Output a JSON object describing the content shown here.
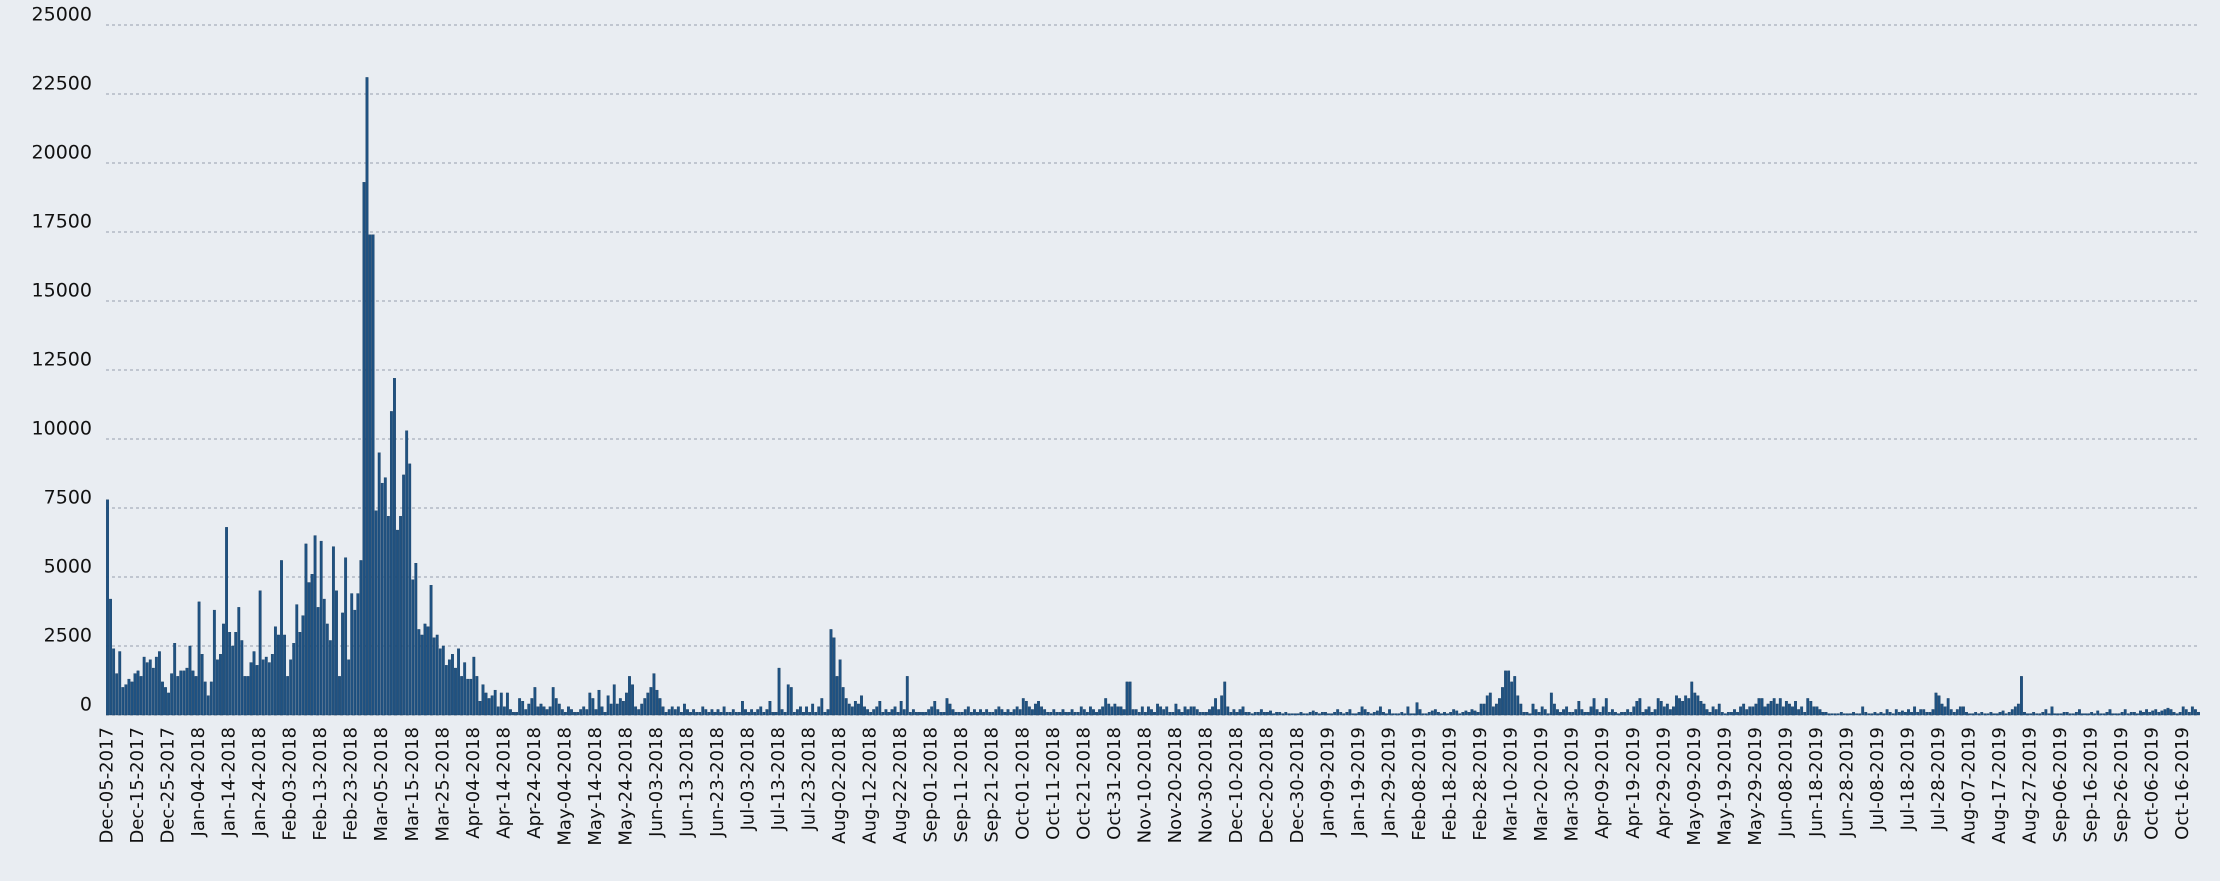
{
  "chart_data": {
    "type": "bar",
    "categories": [
      "Dec-05-2017",
      null,
      null,
      null,
      null,
      null,
      null,
      null,
      null,
      null,
      "Dec-15-2017",
      null,
      null,
      null,
      null,
      null,
      null,
      null,
      null,
      null,
      "Dec-25-2017",
      null,
      null,
      null,
      null,
      null,
      null,
      null,
      null,
      null,
      "Jan-04-2018",
      null,
      null,
      null,
      null,
      null,
      null,
      null,
      null,
      null,
      "Jan-14-2018",
      null,
      null,
      null,
      null,
      null,
      null,
      null,
      null,
      null,
      "Jan-24-2018",
      null,
      null,
      null,
      null,
      null,
      null,
      null,
      null,
      null,
      "Feb-03-2018",
      null,
      null,
      null,
      null,
      null,
      null,
      null,
      null,
      null,
      "Feb-13-2018",
      null,
      null,
      null,
      null,
      null,
      null,
      null,
      null,
      null,
      "Feb-23-2018",
      null,
      null,
      null,
      null,
      null,
      null,
      null,
      null,
      null,
      "Mar-05-2018",
      null,
      null,
      null,
      null,
      null,
      null,
      null,
      null,
      null,
      "Mar-15-2018",
      null,
      null,
      null,
      null,
      null,
      null,
      null,
      null,
      null,
      "Mar-25-2018",
      null,
      null,
      null,
      null,
      null,
      null,
      null,
      null,
      null,
      "Apr-04-2018",
      null,
      null,
      null,
      null,
      null,
      null,
      null,
      null,
      null,
      "Apr-14-2018",
      null,
      null,
      null,
      null,
      null,
      null,
      null,
      null,
      null,
      "Apr-24-2018",
      null,
      null,
      null,
      null,
      null,
      null,
      null,
      null,
      null,
      "May-04-2018",
      null,
      null,
      null,
      null,
      null,
      null,
      null,
      null,
      null,
      "May-14-2018",
      null,
      null,
      null,
      null,
      null,
      null,
      null,
      null,
      null,
      "May-24-2018",
      null,
      null,
      null,
      null,
      null,
      null,
      null,
      null,
      null,
      "Jun-03-2018",
      null,
      null,
      null,
      null,
      null,
      null,
      null,
      null,
      null,
      "Jun-13-2018",
      null,
      null,
      null,
      null,
      null,
      null,
      null,
      null,
      null,
      "Jun-23-2018",
      null,
      null,
      null,
      null,
      null,
      null,
      null,
      null,
      null,
      "Jul-03-2018",
      null,
      null,
      null,
      null,
      null,
      null,
      null,
      null,
      null,
      "Jul-13-2018",
      null,
      null,
      null,
      null,
      null,
      null,
      null,
      null,
      null,
      "Jul-23-2018",
      null,
      null,
      null,
      null,
      null,
      null,
      null,
      null,
      null,
      "Aug-02-2018",
      null,
      null,
      null,
      null,
      null,
      null,
      null,
      null,
      null,
      "Aug-12-2018",
      null,
      null,
      null,
      null,
      null,
      null,
      null,
      null,
      null,
      "Aug-22-2018",
      null,
      null,
      null,
      null,
      null,
      null,
      null,
      null,
      null,
      "Sep-01-2018",
      null,
      null,
      null,
      null,
      null,
      null,
      null,
      null,
      null,
      "Sep-11-2018",
      null,
      null,
      null,
      null,
      null,
      null,
      null,
      null,
      null,
      "Sep-21-2018",
      null,
      null,
      null,
      null,
      null,
      null,
      null,
      null,
      null,
      "Oct-01-2018",
      null,
      null,
      null,
      null,
      null,
      null,
      null,
      null,
      null,
      "Oct-11-2018",
      null,
      null,
      null,
      null,
      null,
      null,
      null,
      null,
      null,
      "Oct-21-2018",
      null,
      null,
      null,
      null,
      null,
      null,
      null,
      null,
      null,
      "Oct-31-2018",
      null,
      null,
      null,
      null,
      null,
      null,
      null,
      null,
      null,
      "Nov-10-2018",
      null,
      null,
      null,
      null,
      null,
      null,
      null,
      null,
      null,
      "Nov-20-2018",
      null,
      null,
      null,
      null,
      null,
      null,
      null,
      null,
      null,
      "Nov-30-2018",
      null,
      null,
      null,
      null,
      null,
      null,
      null,
      null,
      null,
      "Dec-10-2018",
      null,
      null,
      null,
      null,
      null,
      null,
      null,
      null,
      null,
      "Dec-20-2018",
      null,
      null,
      null,
      null,
      null,
      null,
      null,
      null,
      null,
      "Dec-30-2018",
      null,
      null,
      null,
      null,
      null,
      null,
      null,
      null,
      null,
      "Jan-09-2019",
      null,
      null,
      null,
      null,
      null,
      null,
      null,
      null,
      null,
      "Jan-19-2019",
      null,
      null,
      null,
      null,
      null,
      null,
      null,
      null,
      null,
      "Jan-29-2019",
      null,
      null,
      null,
      null,
      null,
      null,
      null,
      null,
      null,
      "Feb-08-2019",
      null,
      null,
      null,
      null,
      null,
      null,
      null,
      null,
      null,
      "Feb-18-2019",
      null,
      null,
      null,
      null,
      null,
      null,
      null,
      null,
      null,
      "Feb-28-2019",
      null,
      null,
      null,
      null,
      null,
      null,
      null,
      null,
      null,
      "Mar-10-2019",
      null,
      null,
      null,
      null,
      null,
      null,
      null,
      null,
      null,
      "Mar-20-2019",
      null,
      null,
      null,
      null,
      null,
      null,
      null,
      null,
      null,
      "Mar-30-2019",
      null,
      null,
      null,
      null,
      null,
      null,
      null,
      null,
      null,
      "Apr-09-2019",
      null,
      null,
      null,
      null,
      null,
      null,
      null,
      null,
      null,
      "Apr-19-2019",
      null,
      null,
      null,
      null,
      null,
      null,
      null,
      null,
      null,
      "Apr-29-2019",
      null,
      null,
      null,
      null,
      null,
      null,
      null,
      null,
      null,
      "May-09-2019",
      null,
      null,
      null,
      null,
      null,
      null,
      null,
      null,
      null,
      "May-19-2019",
      null,
      null,
      null,
      null,
      null,
      null,
      null,
      null,
      null,
      "May-29-2019",
      null,
      null,
      null,
      null,
      null,
      null,
      null,
      null,
      null,
      "Jun-08-2019",
      null,
      null,
      null,
      null,
      null,
      null,
      null,
      null,
      null,
      "Jun-18-2019",
      null,
      null,
      null,
      null,
      null,
      null,
      null,
      null,
      null,
      "Jun-28-2019",
      null,
      null,
      null,
      null,
      null,
      null,
      null,
      null,
      null,
      "Jul-08-2019",
      null,
      null,
      null,
      null,
      null,
      null,
      null,
      null,
      null,
      "Jul-18-2019",
      null,
      null,
      null,
      null,
      null,
      null,
      null,
      null,
      null,
      "Jul-28-2019",
      null,
      null,
      null,
      null,
      null,
      null,
      null,
      null,
      null,
      "Aug-07-2019",
      null,
      null,
      null,
      null,
      null,
      null,
      null,
      null,
      null,
      "Aug-17-2019",
      null,
      null,
      null,
      null,
      null,
      null,
      null,
      null,
      null,
      "Aug-27-2019",
      null,
      null,
      null,
      null,
      null,
      null,
      null,
      null,
      null,
      "Sep-06-2019",
      null,
      null,
      null,
      null,
      null,
      null,
      null,
      null,
      null,
      "Sep-16-2019",
      null,
      null,
      null,
      null,
      null,
      null,
      null,
      null,
      null,
      "Sep-26-2019",
      null,
      null,
      null,
      null,
      null,
      null,
      null,
      null,
      null,
      "Oct-06-2019",
      null,
      null,
      null,
      null,
      null,
      null,
      null,
      null,
      null,
      "Oct-16-2019",
      null,
      null,
      null,
      null,
      null
    ],
    "values": [
      7800,
      4200,
      2400,
      1500,
      2300,
      1000,
      1100,
      1300,
      1200,
      1500,
      1600,
      1400,
      2100,
      1900,
      2000,
      1700,
      2100,
      2300,
      1200,
      1000,
      800,
      1500,
      2600,
      1400,
      1600,
      1600,
      1700,
      2500,
      1600,
      1400,
      4100,
      2200,
      1200,
      700,
      1200,
      3800,
      2000,
      2200,
      3300,
      6800,
      3000,
      2500,
      3000,
      3900,
      2700,
      1400,
      1400,
      1900,
      2300,
      1800,
      4500,
      2000,
      2100,
      1900,
      2200,
      3200,
      2900,
      5600,
      2900,
      1400,
      2000,
      2600,
      4000,
      3000,
      3600,
      6200,
      4800,
      5100,
      6500,
      3900,
      6300,
      4200,
      3300,
      2700,
      6100,
      4500,
      1400,
      3700,
      5700,
      2000,
      4400,
      3800,
      4400,
      5600,
      19300,
      23100,
      17400,
      17400,
      7400,
      9500,
      8400,
      8600,
      7200,
      11000,
      12200,
      6700,
      7200,
      8700,
      10300,
      9100,
      4900,
      5500,
      3100,
      2900,
      3300,
      3200,
      4700,
      2800,
      2900,
      2400,
      2500,
      1800,
      2000,
      2200,
      1700,
      2400,
      1400,
      1900,
      1300,
      1300,
      2100,
      1400,
      500,
      1100,
      800,
      600,
      700,
      900,
      300,
      800,
      300,
      800,
      200,
      100,
      100,
      600,
      500,
      200,
      400,
      600,
      1000,
      300,
      400,
      300,
      200,
      300,
      1000,
      600,
      400,
      200,
      100,
      300,
      200,
      100,
      100,
      200,
      300,
      200,
      800,
      600,
      200,
      900,
      300,
      100,
      700,
      400,
      1100,
      400,
      600,
      500,
      800,
      1400,
      1100,
      300,
      200,
      400,
      600,
      800,
      1000,
      1500,
      900,
      600,
      300,
      100,
      200,
      300,
      200,
      300,
      100,
      400,
      200,
      100,
      200,
      100,
      100,
      300,
      200,
      100,
      200,
      100,
      200,
      100,
      300,
      100,
      100,
      200,
      100,
      100,
      500,
      200,
      100,
      200,
      100,
      200,
      300,
      100,
      200,
      500,
      100,
      100,
      1700,
      200,
      100,
      1100,
      1000,
      100,
      200,
      300,
      100,
      300,
      100,
      400,
      100,
      300,
      600,
      100,
      200,
      3100,
      2800,
      1400,
      2000,
      1000,
      600,
      400,
      300,
      500,
      400,
      700,
      300,
      200,
      100,
      200,
      300,
      500,
      100,
      200,
      100,
      200,
      300,
      100,
      500,
      200,
      1400,
      100,
      200,
      100,
      100,
      100,
      100,
      200,
      300,
      500,
      200,
      100,
      100,
      600,
      400,
      200,
      100,
      100,
      100,
      200,
      300,
      100,
      200,
      100,
      200,
      100,
      200,
      100,
      100,
      200,
      300,
      200,
      100,
      200,
      100,
      200,
      300,
      200,
      600,
      500,
      300,
      200,
      400,
      500,
      300,
      200,
      100,
      100,
      200,
      100,
      100,
      200,
      100,
      100,
      200,
      100,
      100,
      300,
      200,
      100,
      300,
      200,
      100,
      200,
      300,
      600,
      400,
      300,
      400,
      300,
      300,
      200,
      1200,
      1200,
      200,
      200,
      100,
      300,
      100,
      300,
      200,
      100,
      400,
      300,
      200,
      300,
      100,
      100,
      400,
      200,
      100,
      300,
      200,
      300,
      300,
      200,
      100,
      100,
      100,
      200,
      300,
      600,
      200,
      700,
      1200,
      300,
      100,
      200,
      100,
      200,
      300,
      100,
      100,
      50,
      100,
      100,
      200,
      100,
      100,
      150,
      50,
      100,
      100,
      50,
      100,
      50,
      50,
      50,
      50,
      100,
      50,
      50,
      100,
      150,
      100,
      50,
      100,
      100,
      50,
      50,
      100,
      200,
      100,
      50,
      100,
      200,
      50,
      50,
      100,
      300,
      200,
      100,
      50,
      100,
      150,
      300,
      100,
      50,
      200,
      50,
      50,
      50,
      100,
      50,
      300,
      50,
      50,
      450,
      200,
      50,
      50,
      100,
      150,
      200,
      100,
      50,
      100,
      50,
      100,
      200,
      150,
      50,
      100,
      150,
      100,
      200,
      150,
      100,
      400,
      400,
      700,
      800,
      300,
      400,
      600,
      1000,
      1600,
      1600,
      1200,
      1400,
      700,
      400,
      100,
      100,
      50,
      400,
      200,
      100,
      300,
      200,
      50,
      800,
      400,
      200,
      100,
      200,
      300,
      100,
      100,
      200,
      500,
      200,
      100,
      100,
      300,
      600,
      200,
      100,
      300,
      600,
      100,
      200,
      100,
      50,
      100,
      100,
      200,
      100,
      300,
      500,
      600,
      100,
      200,
      300,
      100,
      200,
      600,
      500,
      300,
      400,
      200,
      300,
      700,
      600,
      500,
      700,
      600,
      1200,
      800,
      700,
      500,
      400,
      200,
      100,
      300,
      200,
      400,
      100,
      50,
      100,
      100,
      200,
      100,
      300,
      400,
      200,
      300,
      300,
      400,
      600,
      600,
      300,
      400,
      500,
      600,
      400,
      600,
      300,
      500,
      400,
      300,
      500,
      200,
      300,
      100,
      600,
      500,
      300,
      300,
      200,
      100,
      100,
      50,
      50,
      50,
      50,
      100,
      50,
      50,
      50,
      100,
      50,
      50,
      300,
      100,
      50,
      50,
      100,
      50,
      100,
      50,
      200,
      100,
      50,
      200,
      100,
      150,
      100,
      200,
      100,
      300,
      100,
      200,
      200,
      100,
      100,
      200,
      800,
      700,
      400,
      300,
      600,
      200,
      100,
      200,
      300,
      300,
      100,
      50,
      50,
      100,
      50,
      100,
      50,
      50,
      100,
      50,
      50,
      100,
      150,
      50,
      100,
      200,
      300,
      400,
      1400,
      100,
      50,
      50,
      100,
      50,
      50,
      100,
      200,
      50,
      300,
      50,
      50,
      50,
      100,
      100,
      50,
      50,
      100,
      200,
      50,
      50,
      50,
      100,
      50,
      150,
      50,
      50,
      100,
      200,
      50,
      50,
      50,
      100,
      200,
      50,
      100,
      100,
      50,
      150,
      100,
      200,
      100,
      150,
      200,
      100,
      150,
      200,
      250,
      200,
      100,
      50,
      100,
      300,
      200,
      100,
      300,
      200,
      100
    ],
    "color": "#1f5282",
    "ylim": [
      0,
      25000
    ],
    "yticks": [
      0,
      2500,
      5000,
      7500,
      10000,
      12500,
      15000,
      17500,
      20000,
      22500,
      25000
    ],
    "grid": true
  }
}
